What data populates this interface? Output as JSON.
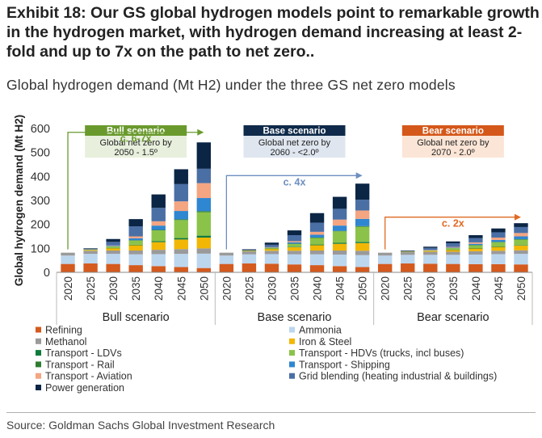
{
  "header": {
    "title": "Exhibit 18: Our GS global hydrogen models point to remarkable growth in the hydrogen market, with hydrogen demand increasing at least 2-fold and up to 7x on the path to net zero..",
    "subtitle": "Global hydrogen demand (Mt H2) under the three GS net zero models"
  },
  "footer": {
    "source": "Source: Goldman Sachs Global Investment Research"
  },
  "chart_data": {
    "type": "stacked-bar",
    "title": "Global hydrogen demand (Mt H2) under the three GS net zero models",
    "ylabel": "Global hydrogen demand (Mt H2)",
    "ylim": [
      0,
      600
    ],
    "yticks": [
      0,
      100,
      200,
      300,
      400,
      500,
      600
    ],
    "years": [
      "2020",
      "2025",
      "2030",
      "2035",
      "2040",
      "2045",
      "2050"
    ],
    "groups": [
      {
        "name": "Bull scenario",
        "header": "Bull scenario",
        "subtext": "Global net zero by 2050 - 1.5º",
        "header_color": "#6a9a2e",
        "box_color": "#e8f0dd",
        "growth_label": "c. 6-7x",
        "growth_color": "#6a9a2e"
      },
      {
        "name": "Base scenario",
        "header": "Base scenario",
        "subtext": "Global net zero by 2060 - <2.0º",
        "header_color": "#0f2a4a",
        "box_color": "#dfe6ef",
        "growth_label": "c. 4x",
        "growth_color": "#6d8fbf"
      },
      {
        "name": "Bear scenario",
        "header": "Bear scenario",
        "subtext": "Global net zero by 2070 - 2.0º",
        "header_color": "#d4581a",
        "box_color": "#fbe5d6",
        "growth_label": "c. 2x",
        "growth_color": "#e06a22"
      }
    ],
    "series": [
      {
        "name": "Refining",
        "color": "#d45a1e",
        "values": [
          [
            35,
            37,
            35,
            30,
            26,
            22,
            18
          ],
          [
            35,
            37,
            36,
            33,
            30,
            26,
            22
          ],
          [
            35,
            37,
            36,
            35,
            34,
            34,
            33
          ]
        ]
      },
      {
        "name": "Ammonia",
        "color": "#bcd6ee",
        "values": [
          [
            35,
            40,
            42,
            45,
            50,
            55,
            60
          ],
          [
            35,
            38,
            40,
            42,
            45,
            48,
            50
          ],
          [
            35,
            36,
            37,
            38,
            40,
            42,
            44
          ]
        ]
      },
      {
        "name": "Methanol",
        "color": "#9a9a9a",
        "values": [
          [
            12,
            13,
            14,
            16,
            18,
            20,
            22
          ],
          [
            12,
            13,
            14,
            15,
            16,
            17,
            18
          ],
          [
            12,
            12,
            13,
            13,
            14,
            14,
            15
          ]
        ]
      },
      {
        "name": "Iron & Steel",
        "color": "#f2b705",
        "values": [
          [
            0,
            3,
            10,
            22,
            32,
            40,
            45
          ],
          [
            0,
            2,
            8,
            15,
            22,
            28,
            32
          ],
          [
            0,
            1,
            4,
            8,
            12,
            16,
            20
          ]
        ]
      },
      {
        "name": "Transport - LDVs",
        "color": "#0e7a3c",
        "values": [
          [
            0,
            0,
            1,
            2,
            4,
            6,
            8
          ],
          [
            0,
            0,
            1,
            2,
            3,
            4,
            5
          ],
          [
            0,
            0,
            0,
            1,
            1,
            2,
            2
          ]
        ]
      },
      {
        "name": "Transport - HDVs (trucks, incl  buses)",
        "color": "#8bc34a",
        "values": [
          [
            0,
            2,
            6,
            18,
            45,
            75,
            98
          ],
          [
            0,
            1,
            4,
            12,
            28,
            48,
            63
          ],
          [
            0,
            1,
            2,
            6,
            12,
            18,
            23
          ]
        ]
      },
      {
        "name": "Transport - Rail",
        "color": "#2e7d32",
        "values": [
          [
            0,
            0,
            0,
            1,
            2,
            3,
            4
          ],
          [
            0,
            0,
            0,
            1,
            1,
            2,
            3
          ],
          [
            0,
            0,
            0,
            0,
            1,
            1,
            1
          ]
        ]
      },
      {
        "name": "Transport - Shipping",
        "color": "#2f86d1",
        "values": [
          [
            0,
            0,
            2,
            8,
            18,
            35,
            55
          ],
          [
            0,
            0,
            1,
            5,
            12,
            22,
            30
          ],
          [
            0,
            0,
            1,
            2,
            5,
            8,
            12
          ]
        ]
      },
      {
        "name": "Transport - Aviation",
        "color": "#f4a582",
        "values": [
          [
            0,
            0,
            2,
            8,
            18,
            40,
            62
          ],
          [
            0,
            0,
            1,
            5,
            12,
            25,
            35
          ],
          [
            0,
            0,
            1,
            3,
            6,
            10,
            14
          ]
        ]
      },
      {
        "name": "Grid blending (heating industrial & buildings)",
        "color": "#4a6fa5",
        "values": [
          [
            0,
            2,
            15,
            42,
            56,
            72,
            60
          ],
          [
            0,
            2,
            10,
            25,
            38,
            45,
            45
          ],
          [
            0,
            2,
            8,
            15,
            18,
            22,
            25
          ]
        ]
      },
      {
        "name": "Power generation",
        "color": "#0b2545",
        "values": [
          [
            0,
            3,
            12,
            30,
            56,
            62,
            110
          ],
          [
            0,
            3,
            9,
            20,
            40,
            50,
            67
          ],
          [
            0,
            2,
            5,
            8,
            12,
            16,
            16
          ]
        ]
      }
    ]
  }
}
